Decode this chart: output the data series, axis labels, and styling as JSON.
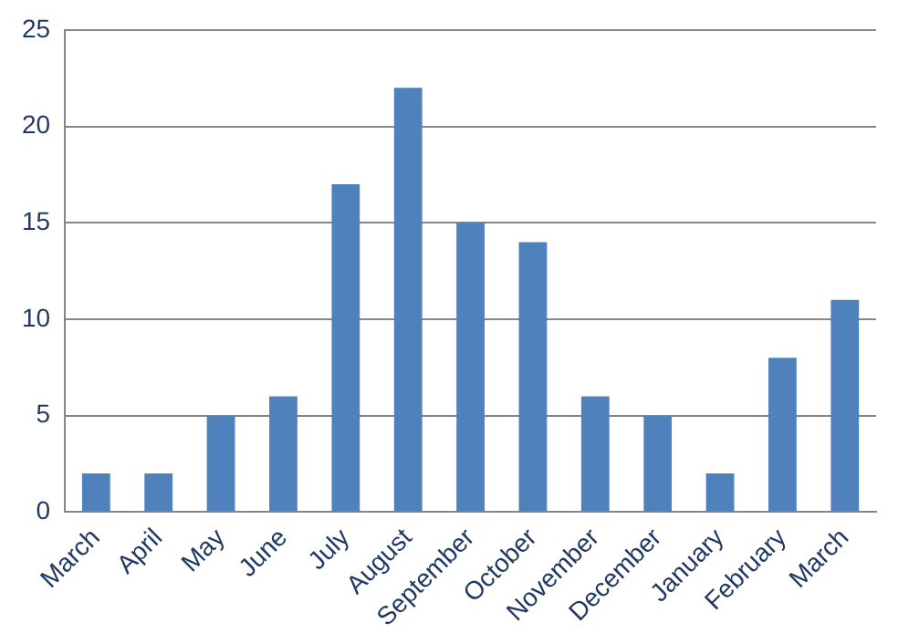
{
  "chart_data": {
    "type": "bar",
    "categories": [
      "March",
      "April",
      "May",
      "June",
      "July",
      "August",
      "September",
      "October",
      "November",
      "December",
      "January",
      "February",
      "March"
    ],
    "values": [
      2,
      2,
      5,
      6,
      17,
      22,
      15,
      14,
      6,
      5,
      2,
      8,
      11
    ],
    "color": "#4f81bd",
    "ylim": [
      0,
      25
    ],
    "yticks": [
      0,
      5,
      10,
      15,
      20,
      25
    ],
    "grid": "y"
  }
}
